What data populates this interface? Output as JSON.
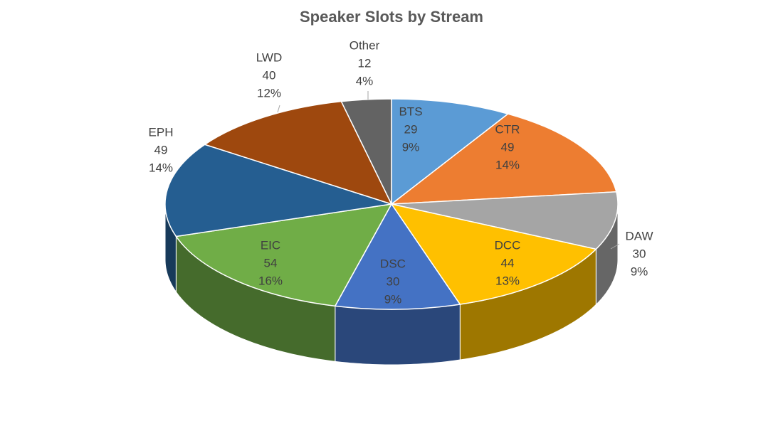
{
  "chart_data": {
    "type": "pie3d",
    "title": "Speaker Slots by Stream",
    "categories": [
      "BTS",
      "CTR",
      "DAW",
      "DCC",
      "DSC",
      "EIC",
      "EPH",
      "LWD",
      "Other"
    ],
    "values": [
      29,
      49,
      30,
      44,
      30,
      54,
      49,
      40,
      12
    ],
    "percent_labels": [
      "9%",
      "14%",
      "9%",
      "13%",
      "9%",
      "16%",
      "14%",
      "12%",
      "4%"
    ],
    "colors": [
      "#5b9bd5",
      "#ed7d31",
      "#a5a5a5",
      "#ffc000",
      "#4472c4",
      "#70ad47",
      "#255e91",
      "#9e480e",
      "#636363"
    ]
  }
}
